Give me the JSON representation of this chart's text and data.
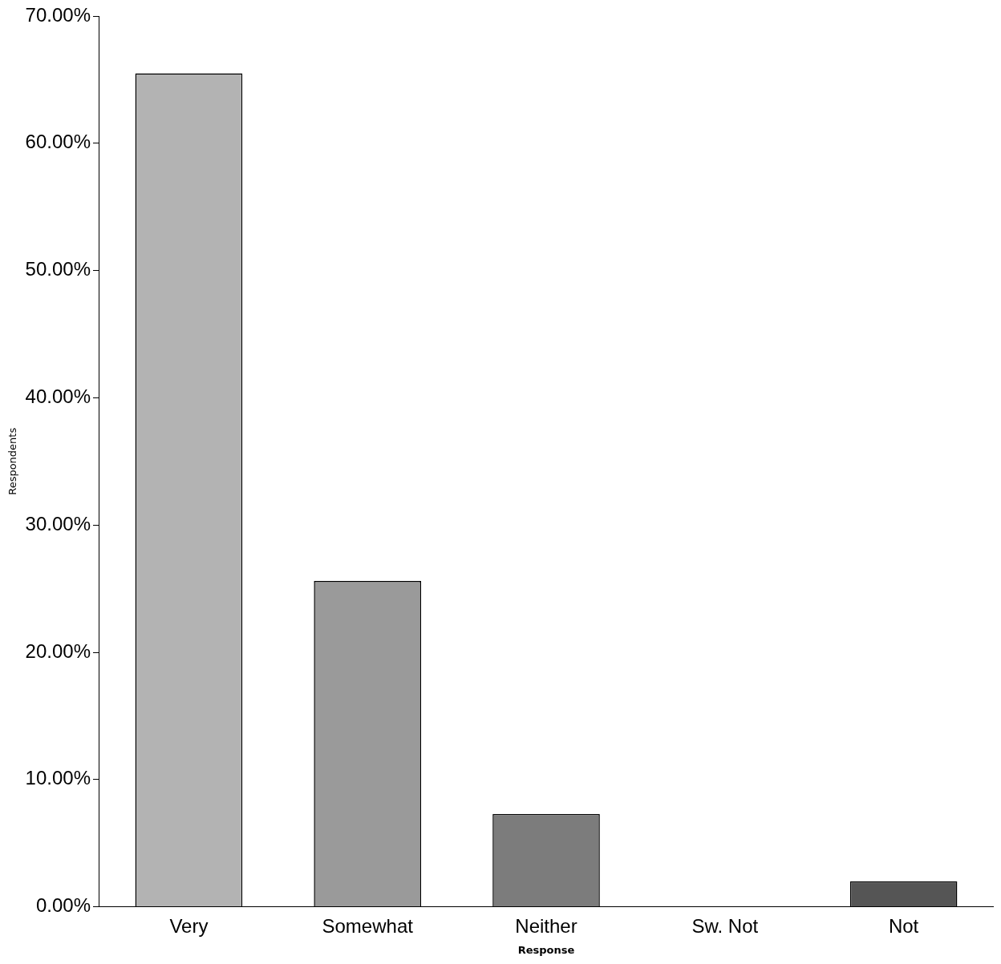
{
  "chart_data": {
    "type": "bar",
    "categories": [
      "Very",
      "Somewhat",
      "Neither",
      "Sw. Not",
      "Not"
    ],
    "values": [
      65.5,
      25.6,
      7.3,
      0,
      2
    ],
    "colors": [
      "#b3b3b3",
      "#9a9a9a",
      "#7c7c7c",
      "#6a6a6a",
      "#555555"
    ],
    "xlabel": "Response",
    "ylabel": "Respondents",
    "ylim": [
      0,
      70
    ],
    "yticks": [
      {
        "value": 0,
        "label": "0.00%"
      },
      {
        "value": 10,
        "label": "10.00%"
      },
      {
        "value": 20,
        "label": "20.00%"
      },
      {
        "value": 30,
        "label": "30.00%"
      },
      {
        "value": 40,
        "label": "40.00%"
      },
      {
        "value": 50,
        "label": "50.00%"
      },
      {
        "value": 60,
        "label": "60.00%"
      },
      {
        "value": 70,
        "label": "70.00%"
      }
    ],
    "grid": false,
    "legend": false
  }
}
